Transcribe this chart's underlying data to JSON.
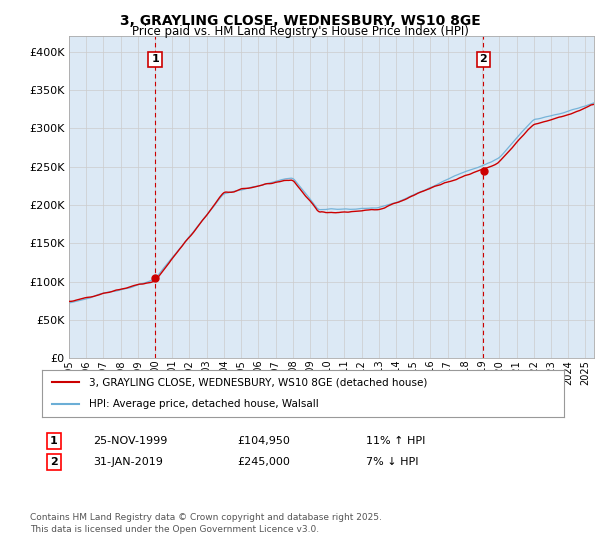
{
  "title": "3, GRAYLING CLOSE, WEDNESBURY, WS10 8GE",
  "subtitle": "Price paid vs. HM Land Registry's House Price Index (HPI)",
  "legend_line1": "3, GRAYLING CLOSE, WEDNESBURY, WS10 8GE (detached house)",
  "legend_line2": "HPI: Average price, detached house, Walsall",
  "hpi_color": "#6baed6",
  "price_color": "#cc0000",
  "vline_color": "#cc0000",
  "grid_color": "#cccccc",
  "bg_color": "#ffffff",
  "plot_bg_color": "#dce9f5",
  "ylim": [
    0,
    420000
  ],
  "yticks": [
    0,
    50000,
    100000,
    150000,
    200000,
    250000,
    300000,
    350000,
    400000
  ],
  "transaction1": {
    "date": "25-NOV-1999",
    "price": 104950,
    "hpi_rel": "11% ↑ HPI",
    "x": 2000.0
  },
  "transaction2": {
    "date": "31-JAN-2019",
    "price": 245000,
    "hpi_rel": "7% ↓ HPI",
    "x": 2019.08
  },
  "footnote": "Contains HM Land Registry data © Crown copyright and database right 2025.\nThis data is licensed under the Open Government Licence v3.0.",
  "xmin": 1995,
  "xmax": 2025.5
}
